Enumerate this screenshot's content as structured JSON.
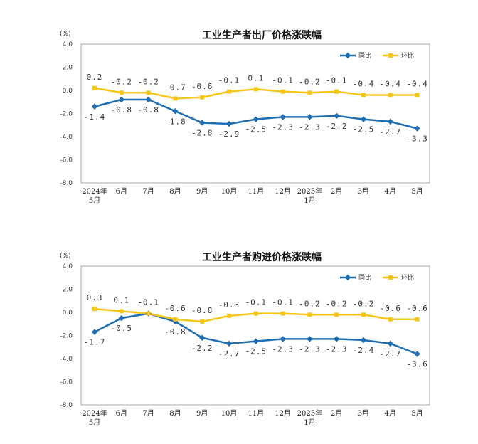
{
  "colors": {
    "yoy": "#1f6eb4",
    "mom": "#f5c518",
    "plot_border": "#aaaaaa",
    "grid": "#d9d9d9"
  },
  "chart_data": [
    {
      "type": "line",
      "title": "工业生产者出厂价格涨跌幅",
      "unit": "(%)",
      "categories": [
        "2024年\n5月",
        "6月",
        "7月",
        "8月",
        "9月",
        "10月",
        "11月",
        "12月",
        "2025年\n1月",
        "2月",
        "3月",
        "4月",
        "5月"
      ],
      "ylim": [
        -8.0,
        4.0
      ],
      "yticks": [
        "4.0",
        "2.0",
        "0.0",
        "-2.0",
        "-4.0",
        "-6.0",
        "-8.0"
      ],
      "grid": false,
      "legend_position": "top-right",
      "series": [
        {
          "name": "同比",
          "values": [
            -1.4,
            -0.8,
            -0.8,
            -1.8,
            -2.8,
            -2.9,
            -2.5,
            -2.3,
            -2.3,
            -2.2,
            -2.5,
            -2.7,
            -3.3
          ],
          "labels": [
            "-1.4",
            "-0.8",
            "-0.8",
            "-1.8",
            "-2.8",
            "-2.9",
            "-2.5",
            "-2.3",
            "-2.3",
            "-2.2",
            "-2.5",
            "-2.7",
            "-3.3"
          ]
        },
        {
          "name": "环比",
          "values": [
            0.2,
            -0.2,
            -0.2,
            -0.7,
            -0.6,
            -0.1,
            0.1,
            -0.1,
            -0.2,
            -0.1,
            -0.4,
            -0.4,
            -0.4
          ],
          "labels": [
            "0.2",
            "-0.2",
            "-0.2",
            "-0.7",
            "-0.6",
            "-0.1",
            "0.1",
            "-0.1",
            "-0.2",
            "-0.1",
            "-0.4",
            "-0.4",
            "-0.4"
          ]
        }
      ]
    },
    {
      "type": "line",
      "title": "工业生产者购进价格涨跌幅",
      "unit": "(%)",
      "categories": [
        "2024年\n5月",
        "6月",
        "7月",
        "8月",
        "9月",
        "10月",
        "11月",
        "12月",
        "2025年\n1月",
        "2月",
        "3月",
        "4月",
        "5月"
      ],
      "ylim": [
        -8.0,
        4.0
      ],
      "yticks": [
        "4.0",
        "2.0",
        "0.0",
        "-2.0",
        "-4.0",
        "-6.0",
        "-8.0"
      ],
      "grid": false,
      "legend_position": "top-right",
      "series": [
        {
          "name": "同比",
          "values": [
            -1.7,
            -0.5,
            -0.1,
            -0.8,
            -2.2,
            -2.7,
            -2.5,
            -2.3,
            -2.3,
            -2.3,
            -2.4,
            -2.7,
            -3.6
          ],
          "labels": [
            "-1.7",
            "-0.5",
            "-0.1",
            "-0.8",
            "-2.2",
            "-2.7",
            "-2.5",
            "-2.3",
            "-2.3",
            "-2.3",
            "-2.4",
            "-2.7",
            "-3.6"
          ]
        },
        {
          "name": "环比",
          "values": [
            0.3,
            0.1,
            -0.1,
            -0.6,
            -0.8,
            -0.3,
            -0.1,
            -0.1,
            -0.2,
            -0.2,
            -0.2,
            -0.6,
            -0.6
          ],
          "labels": [
            "0.3",
            "0.1",
            "-0.1",
            "-0.6",
            "-0.8",
            "-0.3",
            "-0.1",
            "-0.1",
            "-0.2",
            "-0.2",
            "-0.2",
            "-0.6",
            "-0.6"
          ]
        }
      ]
    }
  ]
}
